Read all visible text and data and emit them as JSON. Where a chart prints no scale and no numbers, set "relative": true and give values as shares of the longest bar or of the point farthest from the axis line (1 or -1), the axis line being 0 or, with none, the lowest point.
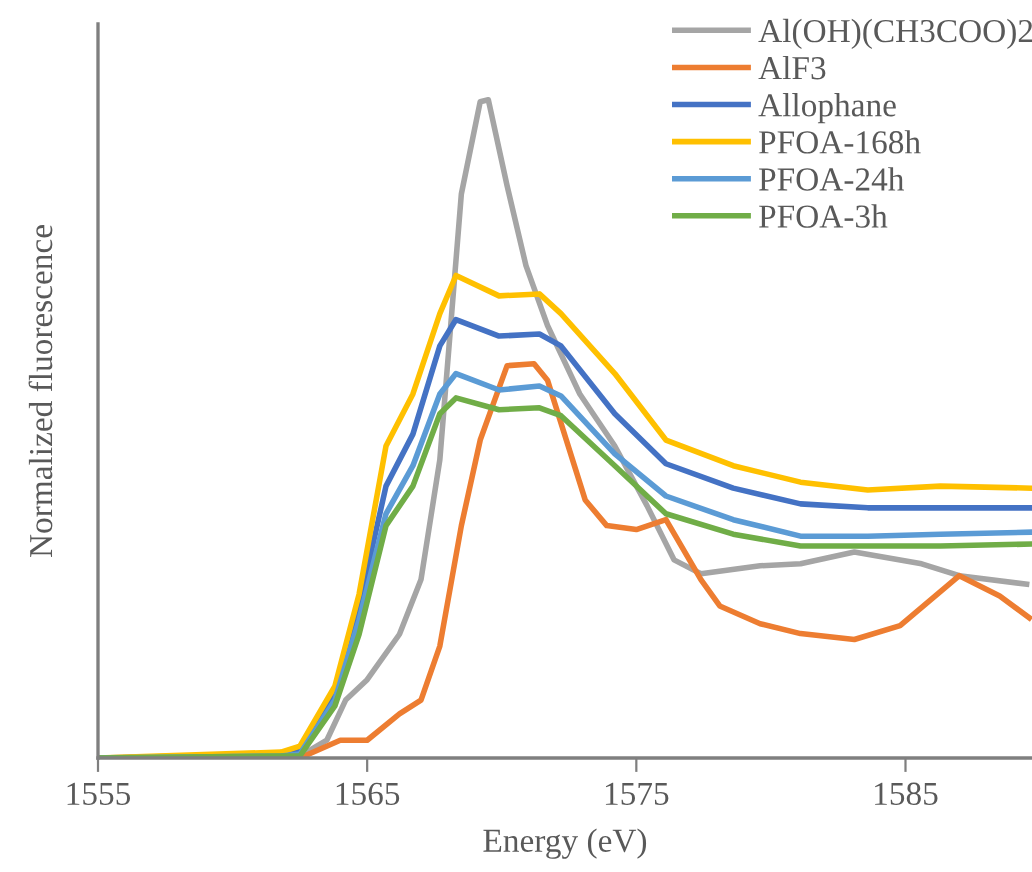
{
  "chart_data": {
    "type": "line",
    "xlabel": "Energy (eV)",
    "ylabel": "Normalized fluorescence",
    "relative": true,
    "xlim": [
      1555,
      1589.7
    ],
    "xticks": [
      1555,
      1565,
      1575,
      1585
    ],
    "grid": false,
    "legend": "top right",
    "marker": "none",
    "line_style": "solid",
    "series": [
      {
        "name": "Al(OH)(CH3COO)2",
        "color": "#a5a5a5",
        "x": [
          1555,
          1562.5,
          1563.5,
          1564.2,
          1565,
          1566.2,
          1567,
          1567.7,
          1568.5,
          1569.2,
          1569.5,
          1570.2,
          1570.9,
          1571.7,
          1572.9,
          1574.2,
          1575.4,
          1576.4,
          1577.4,
          1579.6,
          1581.1,
          1583.1,
          1585.6,
          1587,
          1589.5
        ],
        "values": [
          0,
          0.003,
          0.027,
          0.088,
          0.119,
          0.188,
          0.271,
          0.453,
          0.857,
          0.997,
          1,
          0.869,
          0.748,
          0.657,
          0.553,
          0.474,
          0.383,
          0.301,
          0.28,
          0.292,
          0.295,
          0.313,
          0.295,
          0.277,
          0.264
        ]
      },
      {
        "name": "AlF3",
        "color": "#ed7d31",
        "x": [
          1555,
          1562.5,
          1564,
          1565,
          1566.2,
          1567,
          1567.7,
          1568.5,
          1569.2,
          1570.2,
          1571.2,
          1571.7,
          1572.4,
          1573.1,
          1573.9,
          1575,
          1576.1,
          1577.4,
          1578.1,
          1579.6,
          1581.1,
          1583.1,
          1584.8,
          1587,
          1588.5,
          1589.6
        ],
        "values": [
          0,
          0,
          0.027,
          0.027,
          0.067,
          0.088,
          0.17,
          0.353,
          0.483,
          0.596,
          0.599,
          0.574,
          0.483,
          0.392,
          0.353,
          0.347,
          0.362,
          0.271,
          0.231,
          0.204,
          0.189,
          0.18,
          0.201,
          0.277,
          0.246,
          0.213
        ]
      },
      {
        "name": "Allophane",
        "color": "#4472c4",
        "x": [
          1555,
          1561.8,
          1562.5,
          1563.8,
          1564.7,
          1565.7,
          1566.7,
          1567.7,
          1568.3,
          1569.9,
          1571.4,
          1572.2,
          1574.2,
          1576.1,
          1578.6,
          1581.1,
          1583.6,
          1586.3,
          1589.6
        ],
        "values": [
          0,
          0.006,
          0.012,
          0.097,
          0.231,
          0.413,
          0.492,
          0.626,
          0.666,
          0.641,
          0.644,
          0.626,
          0.523,
          0.447,
          0.41,
          0.386,
          0.38,
          0.38,
          0.38
        ]
      },
      {
        "name": "PFOA-168h",
        "color": "#ffc000",
        "x": [
          1555,
          1561.8,
          1562.5,
          1563.8,
          1564.7,
          1565.7,
          1566.7,
          1567.7,
          1568.3,
          1569.9,
          1571.4,
          1572.2,
          1574.2,
          1576.1,
          1578.6,
          1581.1,
          1583.6,
          1586.3,
          1589.6
        ],
        "values": [
          0,
          0.009,
          0.018,
          0.109,
          0.249,
          0.474,
          0.553,
          0.675,
          0.733,
          0.702,
          0.705,
          0.675,
          0.584,
          0.483,
          0.444,
          0.419,
          0.407,
          0.413,
          0.41
        ]
      },
      {
        "name": "PFOA-24h",
        "color": "#5b9bd5",
        "x": [
          1555,
          1561.8,
          1562.5,
          1563.8,
          1564.7,
          1565.7,
          1566.7,
          1567.7,
          1568.3,
          1569.9,
          1571.4,
          1572.2,
          1574.2,
          1576.1,
          1578.6,
          1581.1,
          1583.6,
          1586.3,
          1589.6
        ],
        "values": [
          0,
          0.003,
          0.006,
          0.088,
          0.21,
          0.371,
          0.444,
          0.553,
          0.584,
          0.559,
          0.565,
          0.55,
          0.462,
          0.398,
          0.362,
          0.337,
          0.337,
          0.34,
          0.343
        ]
      },
      {
        "name": "PFOA-3h",
        "color": "#70ad47",
        "x": [
          1555,
          1561.8,
          1562.5,
          1563.8,
          1564.7,
          1565.7,
          1566.7,
          1567.7,
          1568.3,
          1569.9,
          1571.4,
          1572.2,
          1574.2,
          1576.1,
          1578.6,
          1581.1,
          1583.6,
          1586.3,
          1589.6
        ],
        "values": [
          0,
          0.003,
          0.003,
          0.079,
          0.188,
          0.353,
          0.413,
          0.523,
          0.547,
          0.529,
          0.532,
          0.52,
          0.444,
          0.371,
          0.34,
          0.322,
          0.322,
          0.322,
          0.325
        ]
      }
    ]
  }
}
